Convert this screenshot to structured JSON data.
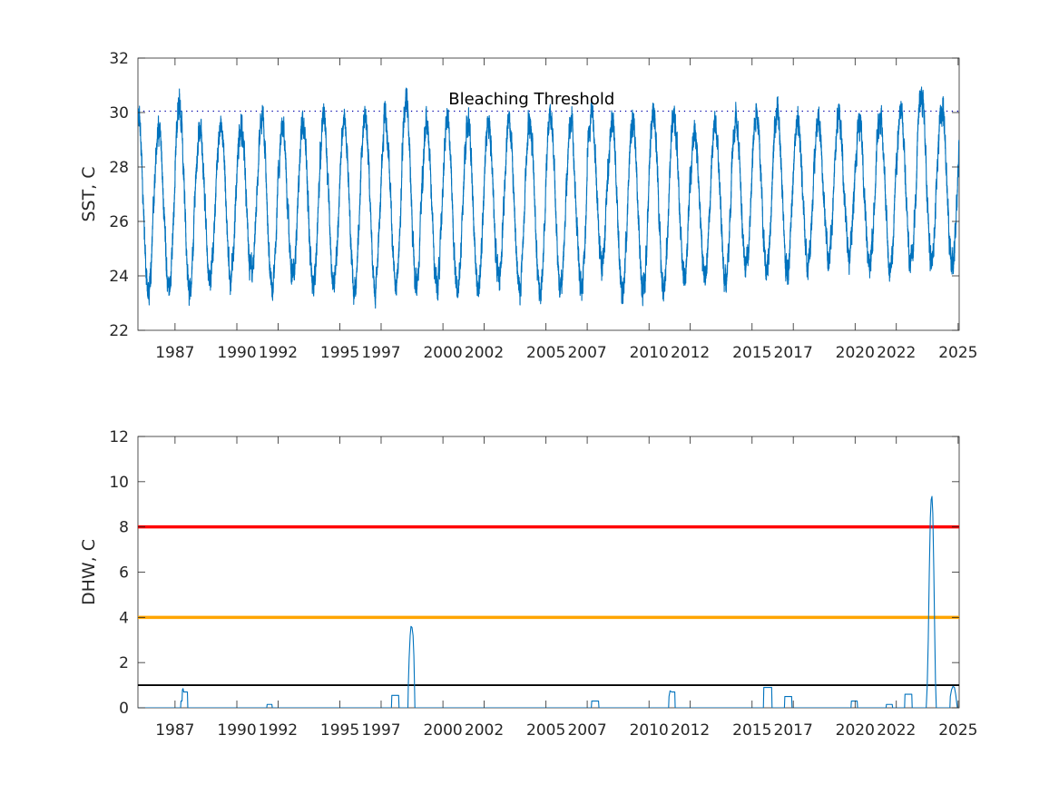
{
  "chart_data": [
    {
      "type": "line",
      "title": "",
      "xlabel": "",
      "ylabel": "SST, C",
      "xlim": [
        1985.2,
        2025.05
      ],
      "ylim": [
        22,
        32
      ],
      "xticks": [
        1987,
        1990,
        1992,
        1995,
        1997,
        2000,
        2002,
        2005,
        2007,
        2010,
        2012,
        2015,
        2017,
        2020,
        2022,
        2025
      ],
      "xtick_labels": [
        "1987",
        "1990",
        "1992",
        "1995",
        "1997",
        "2000",
        "2002",
        "2005",
        "2007",
        "2010",
        "2012",
        "2015",
        "2017",
        "2020",
        "2022",
        "2025"
      ],
      "yticks": [
        22,
        24,
        26,
        28,
        30,
        32
      ],
      "ytick_labels": [
        "22",
        "24",
        "26",
        "28",
        "30",
        "32"
      ],
      "grid": false,
      "series": [
        {
          "color": "#0072BD",
          "seasonal": {
            "peak_year_fraction": 0.21,
            "annual_peaks": [
              [
                1985,
                29.9
              ],
              [
                1986,
                29.3
              ],
              [
                1987,
                30.3
              ],
              [
                1988,
                29.3
              ],
              [
                1989,
                29.7
              ],
              [
                1990,
                29.4
              ],
              [
                1991,
                29.9
              ],
              [
                1992,
                29.4
              ],
              [
                1993,
                29.6
              ],
              [
                1994,
                29.8
              ],
              [
                1995,
                29.6
              ],
              [
                1996,
                29.8
              ],
              [
                1997,
                29.9
              ],
              [
                1998,
                30.5
              ],
              [
                1999,
                29.6
              ],
              [
                2000,
                29.8
              ],
              [
                2001,
                29.6
              ],
              [
                2002,
                29.6
              ],
              [
                2003,
                29.7
              ],
              [
                2004,
                29.7
              ],
              [
                2005,
                30.0
              ],
              [
                2006,
                29.6
              ],
              [
                2007,
                30.0
              ],
              [
                2008,
                29.6
              ],
              [
                2009,
                29.8
              ],
              [
                2010,
                30.0
              ],
              [
                2011,
                29.8
              ],
              [
                2012,
                29.2
              ],
              [
                2013,
                29.7
              ],
              [
                2014,
                29.8
              ],
              [
                2015,
                30.0
              ],
              [
                2016,
                30.1
              ],
              [
                2017,
                29.7
              ],
              [
                2018,
                29.7
              ],
              [
                2019,
                29.8
              ],
              [
                2020,
                29.6
              ],
              [
                2021,
                29.9
              ],
              [
                2022,
                30.0
              ],
              [
                2023,
                30.8
              ],
              [
                2024,
                30.2
              ],
              [
                2025,
                30.0
              ]
            ],
            "annual_troughs": [
              [
                1985,
                23.4
              ],
              [
                1986,
                23.6
              ],
              [
                1987,
                23.4
              ],
              [
                1988,
                24.0
              ],
              [
                1989,
                24.0
              ],
              [
                1990,
                24.2
              ],
              [
                1991,
                23.6
              ],
              [
                1992,
                24.0
              ],
              [
                1993,
                23.6
              ],
              [
                1994,
                23.6
              ],
              [
                1995,
                23.4
              ],
              [
                1996,
                23.6
              ],
              [
                1997,
                23.6
              ],
              [
                1998,
                23.6
              ],
              [
                1999,
                23.6
              ],
              [
                2000,
                23.4
              ],
              [
                2001,
                23.6
              ],
              [
                2002,
                24.0
              ],
              [
                2003,
                23.6
              ],
              [
                2004,
                23.4
              ],
              [
                2005,
                23.6
              ],
              [
                2006,
                23.6
              ],
              [
                2007,
                24.4
              ],
              [
                2008,
                23.4
              ],
              [
                2009,
                23.4
              ],
              [
                2010,
                23.6
              ],
              [
                2011,
                24.0
              ],
              [
                2012,
                24.0
              ],
              [
                2013,
                23.8
              ],
              [
                2014,
                24.2
              ],
              [
                2015,
                24.2
              ],
              [
                2016,
                24.2
              ],
              [
                2017,
                24.4
              ],
              [
                2018,
                24.6
              ],
              [
                2019,
                24.8
              ],
              [
                2020,
                24.4
              ],
              [
                2021,
                24.4
              ],
              [
                2022,
                24.6
              ],
              [
                2023,
                24.6
              ],
              [
                2024,
                24.4
              ],
              [
                2025,
                24.2
              ]
            ],
            "noise_amplitude": 0.45
          }
        }
      ],
      "reference_lines": [
        {
          "y": 30.05,
          "style": "dotted",
          "color": "#0000AA"
        }
      ],
      "annotations": [
        {
          "text": "Bleaching Threshold",
          "x": 2004.3,
          "y": 30.5
        }
      ]
    },
    {
      "type": "line",
      "title": "",
      "xlabel": "",
      "ylabel": "DHW, C",
      "xlim": [
        1985.2,
        2025.05
      ],
      "ylim": [
        0,
        12
      ],
      "xticks": [
        1987,
        1990,
        1992,
        1995,
        1997,
        2000,
        2002,
        2005,
        2007,
        2010,
        2012,
        2015,
        2017,
        2020,
        2022,
        2025
      ],
      "xtick_labels": [
        "1987",
        "1990",
        "1992",
        "1995",
        "1997",
        "2000",
        "2002",
        "2005",
        "2007",
        "2010",
        "2012",
        "2015",
        "2017",
        "2020",
        "2022",
        "2025"
      ],
      "yticks": [
        0,
        2,
        4,
        6,
        8,
        10,
        12
      ],
      "ytick_labels": [
        "0",
        "2",
        "4",
        "6",
        "8",
        "10",
        "12"
      ],
      "grid": false,
      "series": [
        {
          "color": "#0072BD",
          "points": [
            [
              1985.2,
              0
            ],
            [
              1987.27,
              0
            ],
            [
              1987.29,
              0.3
            ],
            [
              1987.34,
              0.3
            ],
            [
              1987.36,
              0.8
            ],
            [
              1987.39,
              0.85
            ],
            [
              1987.42,
              0.7
            ],
            [
              1987.6,
              0.7
            ],
            [
              1987.62,
              0
            ],
            [
              1991.45,
              0
            ],
            [
              1991.47,
              0.15
            ],
            [
              1991.7,
              0.15
            ],
            [
              1991.72,
              0
            ],
            [
              1997.5,
              0
            ],
            [
              1997.52,
              0.55
            ],
            [
              1997.85,
              0.55
            ],
            [
              1997.87,
              0
            ],
            [
              1998.3,
              0
            ],
            [
              1998.32,
              1.0
            ],
            [
              1998.36,
              2.2
            ],
            [
              1998.41,
              3.2
            ],
            [
              1998.45,
              3.6
            ],
            [
              1998.5,
              3.55
            ],
            [
              1998.55,
              3.2
            ],
            [
              1998.59,
              2.3
            ],
            [
              1998.62,
              1.0
            ],
            [
              1998.64,
              0
            ],
            [
              2007.2,
              0
            ],
            [
              2007.22,
              0.3
            ],
            [
              2007.55,
              0.3
            ],
            [
              2007.57,
              0
            ],
            [
              2010.95,
              0
            ],
            [
              2010.97,
              0.5
            ],
            [
              2011.02,
              0.75
            ],
            [
              2011.1,
              0.7
            ],
            [
              2011.25,
              0.7
            ],
            [
              2011.27,
              0
            ],
            [
              2015.55,
              0
            ],
            [
              2015.57,
              0.9
            ],
            [
              2015.95,
              0.9
            ],
            [
              2015.97,
              0
            ],
            [
              2016.57,
              0
            ],
            [
              2016.59,
              0.5
            ],
            [
              2016.92,
              0.5
            ],
            [
              2016.94,
              0
            ],
            [
              2019.8,
              0
            ],
            [
              2019.82,
              0.3
            ],
            [
              2020.1,
              0.3
            ],
            [
              2020.12,
              0
            ],
            [
              2021.5,
              0
            ],
            [
              2021.52,
              0.15
            ],
            [
              2021.8,
              0.15
            ],
            [
              2021.82,
              0
            ],
            [
              2022.4,
              0
            ],
            [
              2022.42,
              0.6
            ],
            [
              2022.75,
              0.6
            ],
            [
              2022.77,
              0
            ],
            [
              2023.45,
              0
            ],
            [
              2023.5,
              1.0
            ],
            [
              2023.55,
              3.0
            ],
            [
              2023.6,
              6.0
            ],
            [
              2023.65,
              8.4
            ],
            [
              2023.69,
              9.2
            ],
            [
              2023.73,
              9.35
            ],
            [
              2023.77,
              8.6
            ],
            [
              2023.82,
              6.0
            ],
            [
              2023.86,
              3.5
            ],
            [
              2023.9,
              1.2
            ],
            [
              2023.94,
              0
            ],
            [
              2024.6,
              0
            ],
            [
              2024.62,
              0.5
            ],
            [
              2024.68,
              0.8
            ],
            [
              2024.75,
              0.95
            ],
            [
              2024.82,
              0.9
            ],
            [
              2024.88,
              0.6
            ],
            [
              2024.92,
              0.3
            ],
            [
              2024.96,
              0
            ],
            [
              2025.05,
              0
            ]
          ]
        }
      ],
      "reference_lines": [
        {
          "y": 8,
          "style": "solid",
          "color": "#FF0000",
          "width": 3.5
        },
        {
          "y": 4,
          "style": "solid",
          "color": "#FFA500",
          "width": 3.5
        },
        {
          "y": 1,
          "style": "solid",
          "color": "#000000",
          "width": 1.8
        }
      ]
    }
  ]
}
